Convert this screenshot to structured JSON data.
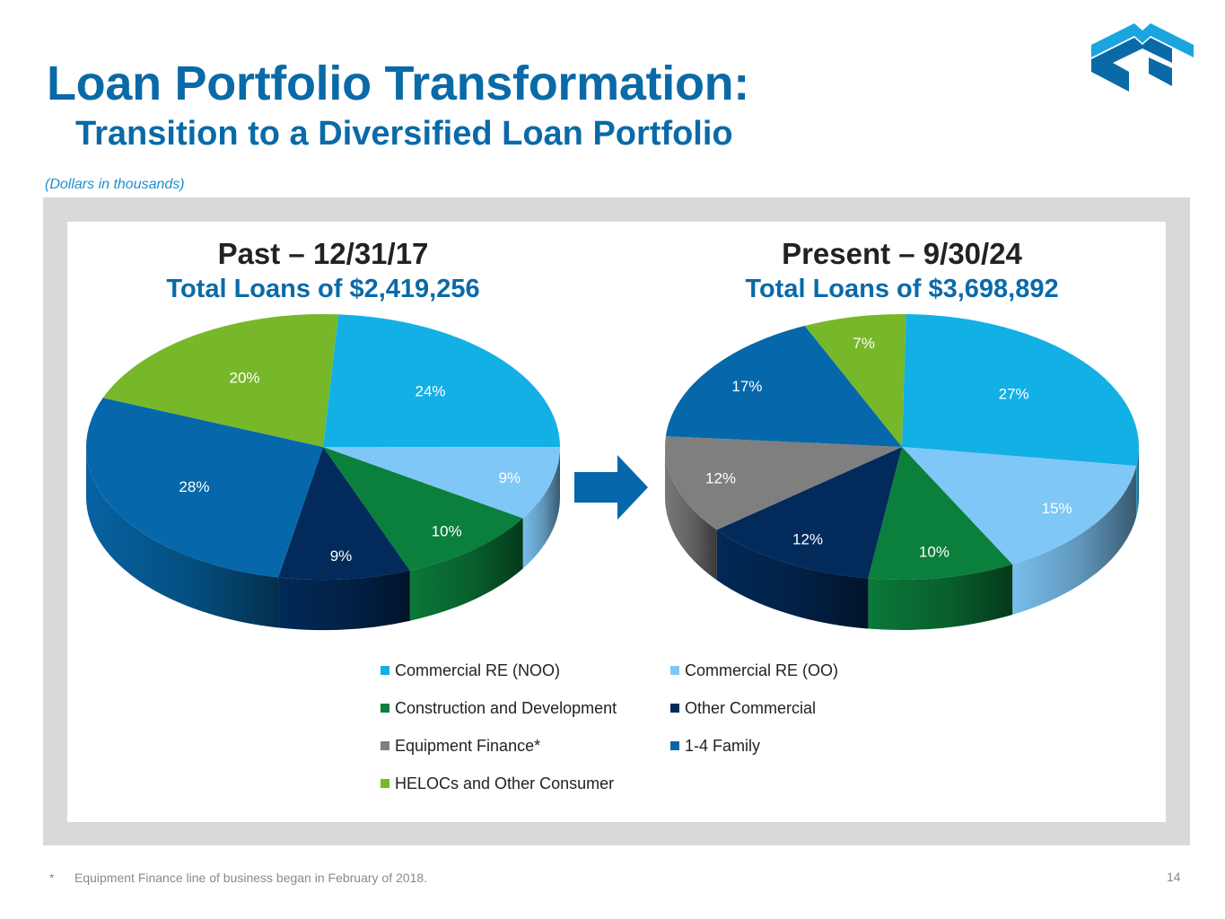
{
  "header": {
    "title": "Loan Portfolio Transformation:",
    "subtitle": "Transition to a Diversified Loan Portfolio",
    "units_note": "(Dollars in thousands)"
  },
  "colors": {
    "title_blue": "#0a6aa8",
    "frame_gray": "#d9d9d9"
  },
  "chart_data": [
    {
      "type": "pie",
      "title": "Past – 12/31/17",
      "subtitle": "Total Loans of $2,419,256",
      "slices": [
        {
          "label": "Commercial RE (NOO)",
          "value": 24,
          "display": "24%",
          "color": "#13b0e6"
        },
        {
          "label": "Commercial RE (OO)",
          "value": 9,
          "display": "9%",
          "color": "#7fc7f7"
        },
        {
          "label": "Construction and Development",
          "value": 10,
          "display": "10%",
          "color": "#0b7f3c"
        },
        {
          "label": "Other Commercial",
          "value": 9,
          "display": "9%",
          "color": "#022b5c"
        },
        {
          "label": "1-4 Family",
          "value": 28,
          "display": "28%",
          "color": "#0668aa"
        },
        {
          "label": "HELOCs and Other Consumer",
          "value": 20,
          "display": "20%",
          "color": "#76b82a"
        }
      ]
    },
    {
      "type": "pie",
      "title": "Present – 9/30/24",
      "subtitle": "Total Loans of $3,698,892",
      "slices": [
        {
          "label": "Commercial RE (NOO)",
          "value": 27,
          "display": "27%",
          "color": "#13b0e6"
        },
        {
          "label": "Commercial RE (OO)",
          "value": 15,
          "display": "15%",
          "color": "#7fc7f7"
        },
        {
          "label": "Construction and Development",
          "value": 10,
          "display": "10%",
          "color": "#0b7f3c"
        },
        {
          "label": "Other Commercial",
          "value": 12,
          "display": "12%",
          "color": "#022b5c"
        },
        {
          "label": "Equipment Finance*",
          "value": 12,
          "display": "12%",
          "color": "#7f7f7f"
        },
        {
          "label": "1-4 Family",
          "value": 17,
          "display": "17%",
          "color": "#0668aa"
        },
        {
          "label": "HELOCs and Other Consumer",
          "value": 7,
          "display": "7%",
          "color": "#76b82a"
        }
      ]
    }
  ],
  "legend": [
    {
      "label": "Commercial RE (NOO)",
      "color": "#13b0e6"
    },
    {
      "label": "Commercial RE (OO)",
      "color": "#7fc7f7"
    },
    {
      "label": "Construction and Development",
      "color": "#0b7f3c"
    },
    {
      "label": "Other Commercial",
      "color": "#022b5c"
    },
    {
      "label": "Equipment Finance*",
      "color": "#7f7f7f"
    },
    {
      "label": "1-4 Family",
      "color": "#0668aa"
    },
    {
      "label": "HELOCs and Other Consumer",
      "color": "#76b82a"
    }
  ],
  "footer": {
    "marker": "*",
    "note": "Equipment Finance line of business began in February of 2018.",
    "page_number": "14"
  }
}
